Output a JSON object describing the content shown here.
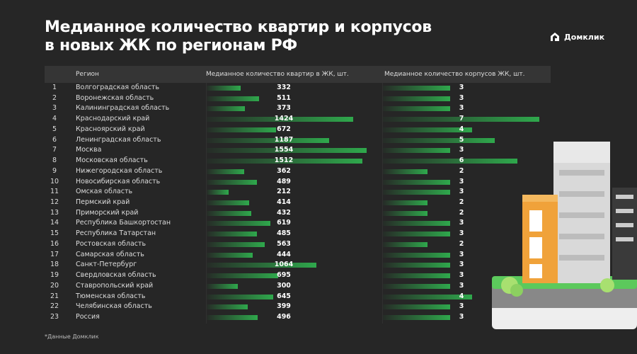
{
  "title_line1": "Медианное количество квартир и корпусов",
  "title_line2": "в новых ЖК по регионам РФ",
  "logo": "Домклик",
  "footnote": "*Данные Домклик",
  "colors": {
    "bar": "#2fa84c",
    "background": "#262626"
  },
  "chart_data": {
    "type": "table",
    "columns": [
      "",
      "Регион",
      "Медианное количество квартир в ЖК, шт.",
      "Медианное количество корпусов ЖК, шт."
    ],
    "rows": [
      {
        "n": "1",
        "region": "Волгоградская область",
        "apartments": 332,
        "buildings": 3
      },
      {
        "n": "2",
        "region": "Воронежская область",
        "apartments": 511,
        "buildings": 3
      },
      {
        "n": "3",
        "region": "Калининградская область",
        "apartments": 373,
        "buildings": 3
      },
      {
        "n": "4",
        "region": "Краснодарский край",
        "apartments": 1424,
        "buildings": 7
      },
      {
        "n": "5",
        "region": "Красноярский край",
        "apartments": 672,
        "buildings": 4
      },
      {
        "n": "6",
        "region": "Ленинградская область",
        "apartments": 1187,
        "buildings": 5
      },
      {
        "n": "7",
        "region": "Москва",
        "apartments": 1554,
        "buildings": 3
      },
      {
        "n": "8",
        "region": "Московская область",
        "apartments": 1512,
        "buildings": 6
      },
      {
        "n": "9",
        "region": "Нижегородская область",
        "apartments": 362,
        "buildings": 2
      },
      {
        "n": "10",
        "region": "Новосибирская область",
        "apartments": 489,
        "buildings": 3
      },
      {
        "n": "11",
        "region": "Омская область",
        "apartments": 212,
        "buildings": 3
      },
      {
        "n": "12",
        "region": "Пермский край",
        "apartments": 414,
        "buildings": 2
      },
      {
        "n": "13",
        "region": "Приморский край",
        "apartments": 432,
        "buildings": 2
      },
      {
        "n": "14",
        "region": "Республика Башкортостан",
        "apartments": 619,
        "buildings": 3
      },
      {
        "n": "15",
        "region": "Республика Татарстан",
        "apartments": 485,
        "buildings": 3
      },
      {
        "n": "16",
        "region": "Ростовская область",
        "apartments": 563,
        "buildings": 2
      },
      {
        "n": "17",
        "region": "Самарская область",
        "apartments": 444,
        "buildings": 3
      },
      {
        "n": "18",
        "region": "Санкт-Петербург",
        "apartments": 1064,
        "buildings": 3
      },
      {
        "n": "19",
        "region": "Свердловская область",
        "apartments": 695,
        "buildings": 3
      },
      {
        "n": "20",
        "region": "Ставропольский край",
        "apartments": 300,
        "buildings": 3
      },
      {
        "n": "21",
        "region": "Тюменская область",
        "apartments": 645,
        "buildings": 4
      },
      {
        "n": "22",
        "region": "Челябинская область",
        "apartments": 399,
        "buildings": 3
      },
      {
        "n": "23",
        "region": "Россия",
        "apartments": 496,
        "buildings": 3
      }
    ]
  }
}
